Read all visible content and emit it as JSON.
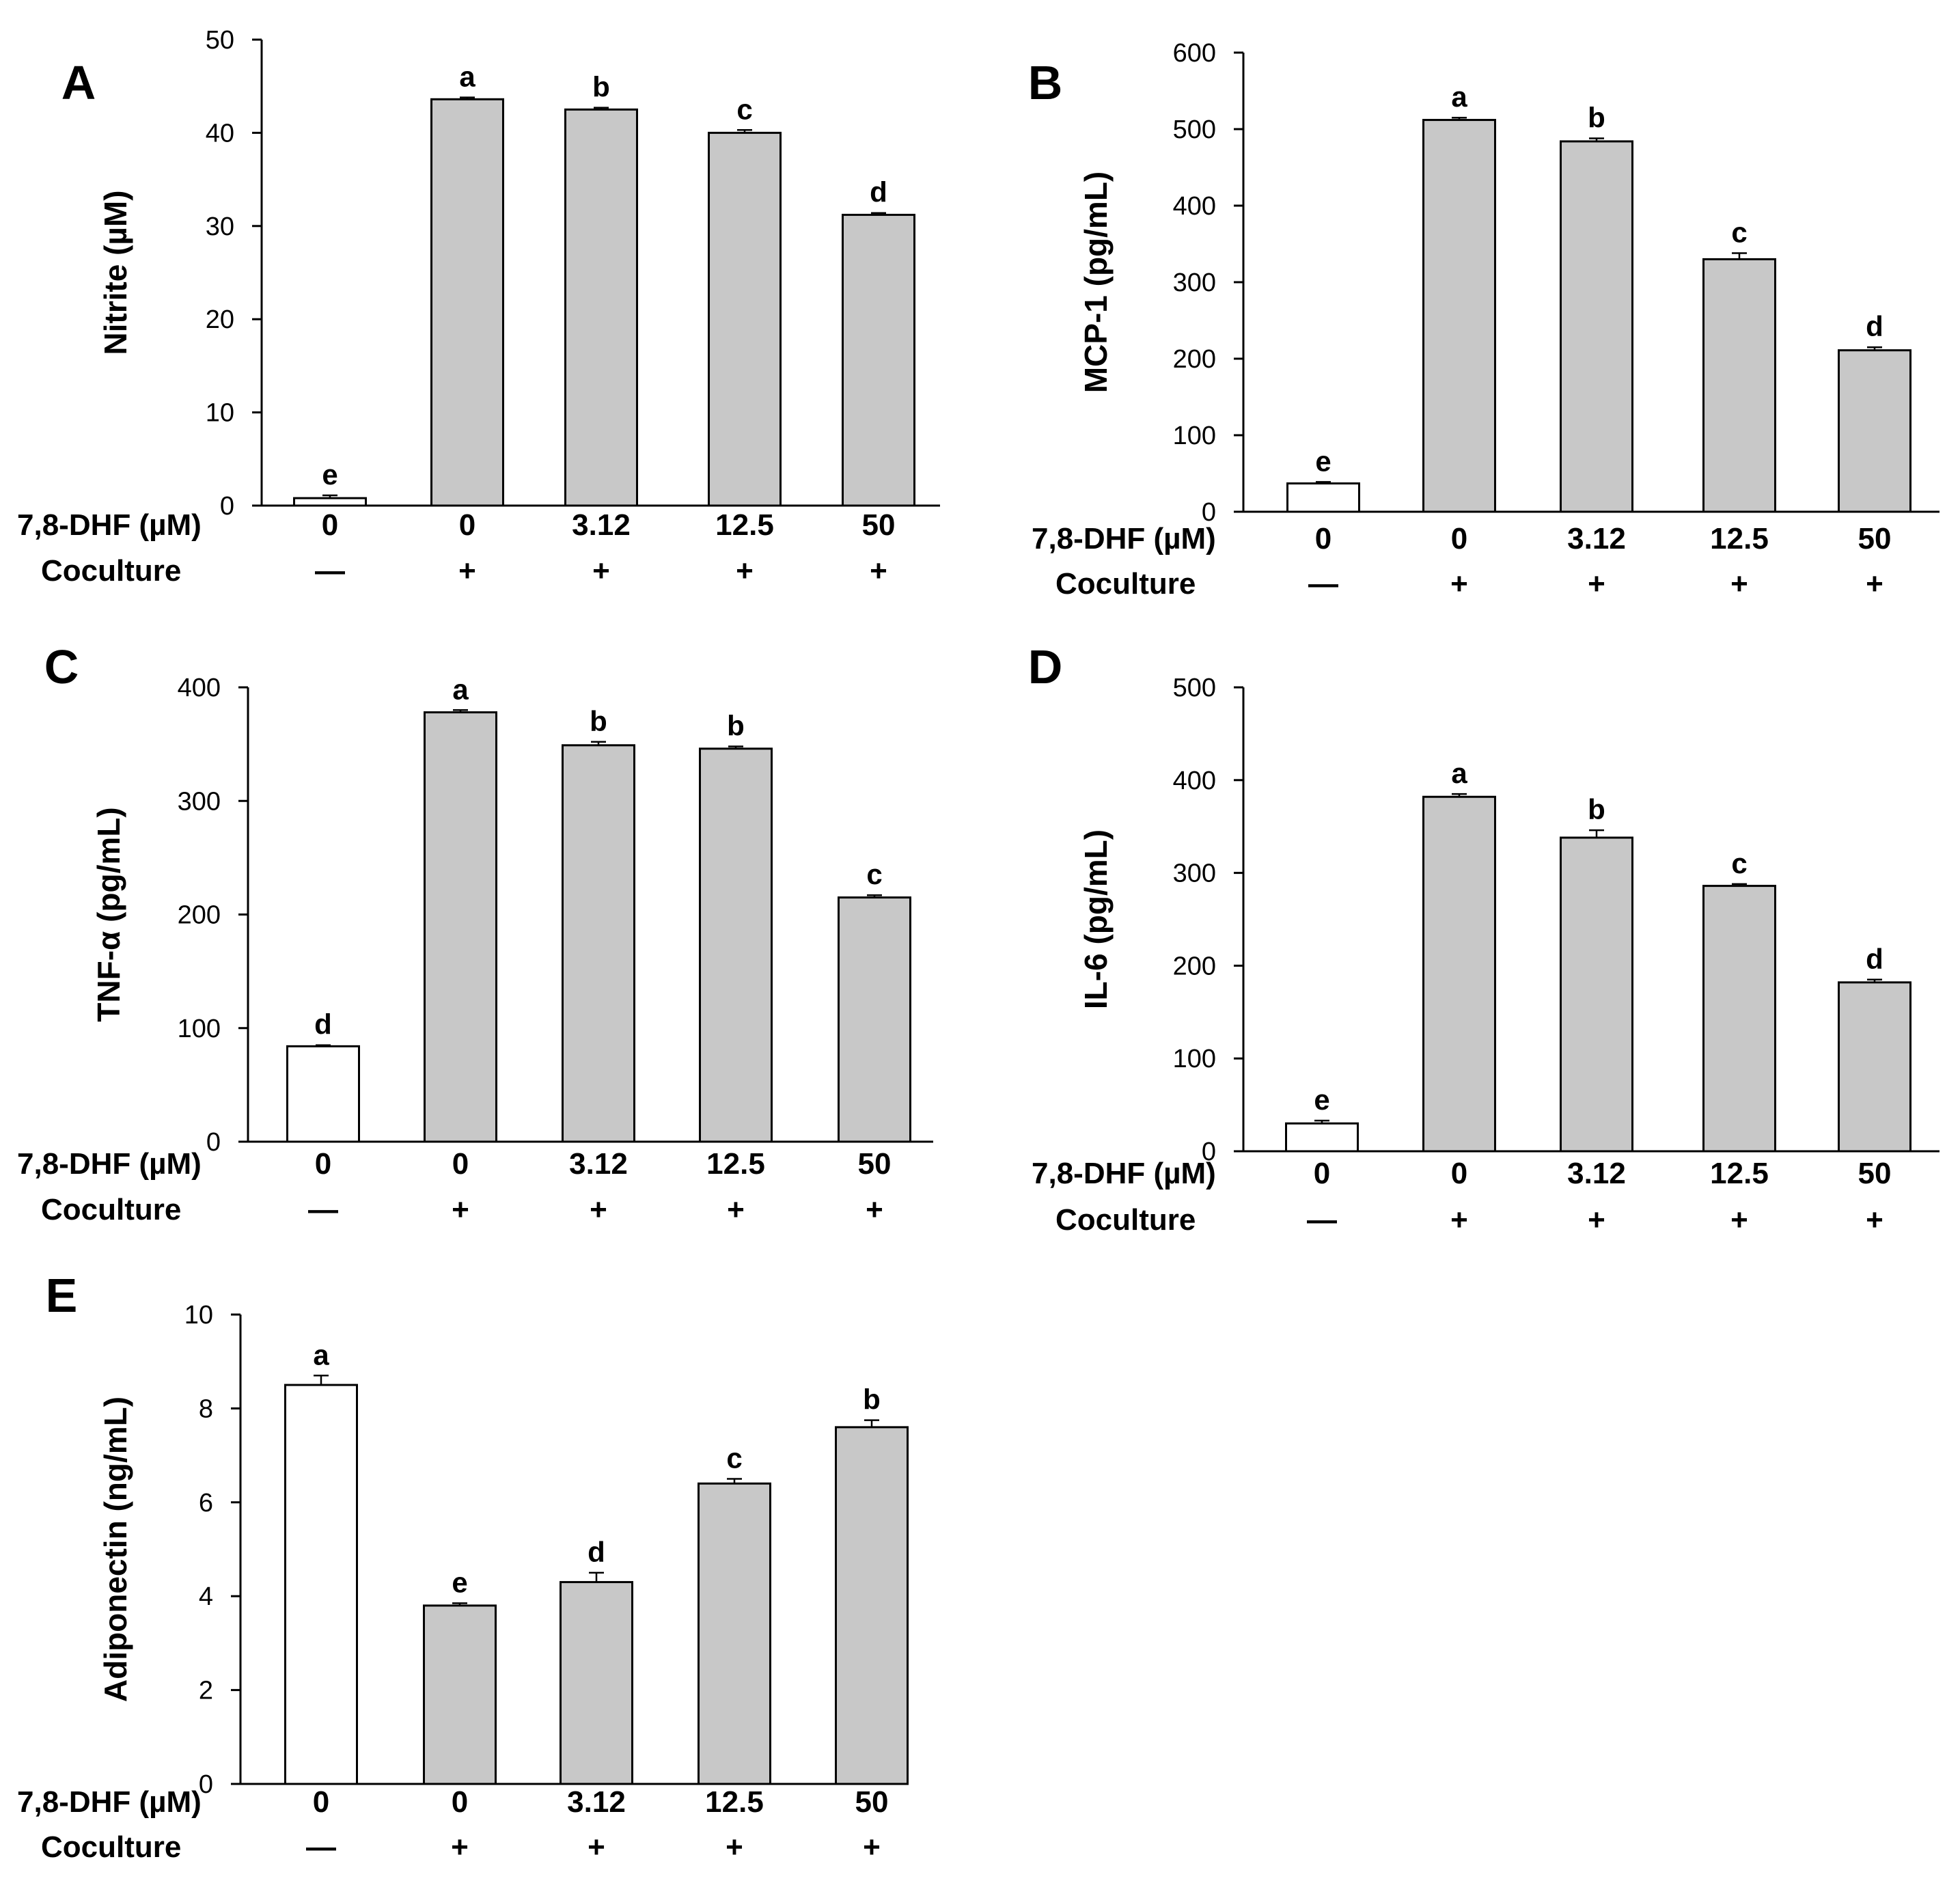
{
  "chart_data": [
    {
      "type": "bar",
      "panel": "A",
      "ylabel": "Nitrite  (µM)",
      "ylim": [
        0,
        50
      ],
      "yticks": [
        "0",
        "10",
        "20",
        "30",
        "40",
        "50"
      ],
      "row1_label": "7,8-DHF (µM)",
      "row2_label": "Coculture",
      "categories": [
        "0",
        "0",
        "3.12",
        "12.5",
        "50"
      ],
      "coculture": [
        "—",
        "+",
        "+",
        "+",
        "+"
      ],
      "values": [
        0.8,
        43.6,
        42.5,
        40.0,
        31.2
      ],
      "errors": [
        0.3,
        0.2,
        0.2,
        0.3,
        0.2
      ],
      "letters": [
        "e",
        "a",
        "b",
        "c",
        "d"
      ],
      "colors": [
        "#ffffff",
        "#c8c8c8",
        "#c8c8c8",
        "#c8c8c8",
        "#c8c8c8"
      ]
    },
    {
      "type": "bar",
      "panel": "B",
      "ylabel": "MCP-1  (pg/mL)",
      "ylim": [
        0,
        600
      ],
      "yticks": [
        "0",
        "100",
        "200",
        "300",
        "400",
        "500",
        "600"
      ],
      "row1_label": "7,8-DHF (µM)",
      "row2_label": "Coculture",
      "categories": [
        "0",
        "0",
        "3.12",
        "12.5",
        "50"
      ],
      "coculture": [
        "—",
        "+",
        "+",
        "+",
        "+"
      ],
      "values": [
        37,
        512,
        484,
        330,
        211
      ],
      "errors": [
        2,
        3,
        4,
        8,
        4
      ],
      "letters": [
        "e",
        "a",
        "b",
        "c",
        "d"
      ],
      "colors": [
        "#ffffff",
        "#c8c8c8",
        "#c8c8c8",
        "#c8c8c8",
        "#c8c8c8"
      ]
    },
    {
      "type": "bar",
      "panel": "C",
      "ylabel": "TNF-α (pg/mL)",
      "ylim": [
        0,
        400
      ],
      "yticks": [
        "0",
        "100",
        "200",
        "300",
        "400"
      ],
      "row1_label": "7,8-DHF (µM)",
      "row2_label": "Coculture",
      "categories": [
        "0",
        "0",
        "3.12",
        "12.5",
        "50"
      ],
      "coculture": [
        "—",
        "+",
        "+",
        "+",
        "+"
      ],
      "values": [
        84,
        378,
        349,
        346,
        215
      ],
      "errors": [
        1,
        2,
        3,
        2,
        2
      ],
      "letters": [
        "d",
        "a",
        "b",
        "b",
        "c"
      ],
      "colors": [
        "#ffffff",
        "#c8c8c8",
        "#c8c8c8",
        "#c8c8c8",
        "#c8c8c8"
      ]
    },
    {
      "type": "bar",
      "panel": "D",
      "ylabel": "IL-6  (pg/mL)",
      "ylim": [
        0,
        500
      ],
      "yticks": [
        "0",
        "100",
        "200",
        "300",
        "400",
        "500"
      ],
      "row1_label": "7,8-DHF (µM)",
      "row2_label": "Coculture",
      "categories": [
        "0",
        "0",
        "3.12",
        "12.5",
        "50"
      ],
      "coculture": [
        "—",
        "+",
        "+",
        "+",
        "+"
      ],
      "values": [
        30,
        382,
        338,
        286,
        182
      ],
      "errors": [
        3,
        3,
        8,
        2,
        3
      ],
      "letters": [
        "e",
        "a",
        "b",
        "c",
        "d"
      ],
      "colors": [
        "#ffffff",
        "#c8c8c8",
        "#c8c8c8",
        "#c8c8c8",
        "#c8c8c8"
      ]
    },
    {
      "type": "bar",
      "panel": "E",
      "ylabel": "Adiponectin  (ng/mL)",
      "ylim": [
        0,
        10
      ],
      "yticks": [
        "0",
        "2",
        "4",
        "6",
        "8",
        "10"
      ],
      "row1_label": "7,8-DHF (µM)",
      "row2_label": "Coculture",
      "categories": [
        "0",
        "0",
        "3.12",
        "12.5",
        "50"
      ],
      "coculture": [
        "—",
        "+",
        "+",
        "+",
        "+"
      ],
      "values": [
        8.5,
        3.8,
        4.3,
        6.4,
        7.6
      ],
      "errors": [
        0.2,
        0.05,
        0.2,
        0.1,
        0.15
      ],
      "letters": [
        "a",
        "e",
        "d",
        "c",
        "b"
      ],
      "colors": [
        "#ffffff",
        "#c8c8c8",
        "#c8c8c8",
        "#c8c8c8",
        "#c8c8c8"
      ]
    }
  ]
}
